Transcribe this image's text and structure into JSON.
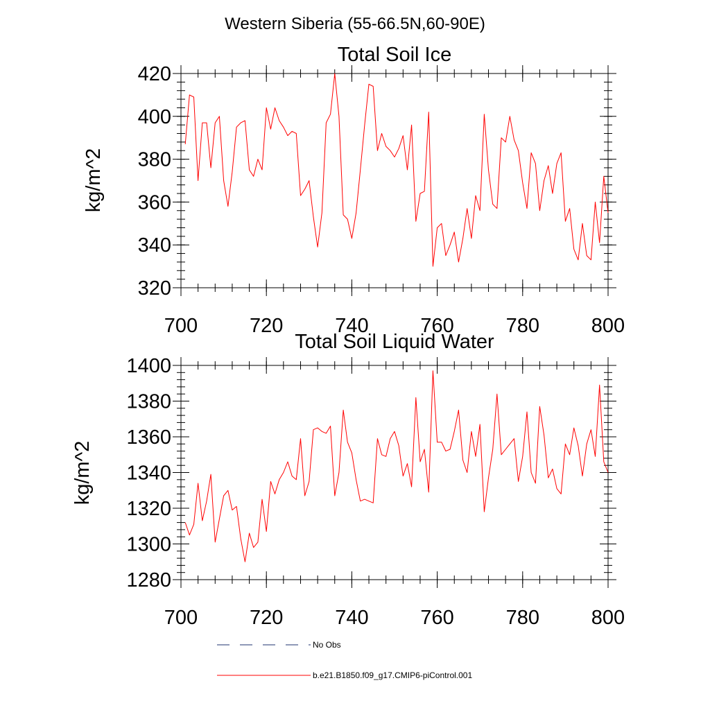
{
  "figure": {
    "suptitle": "Western Siberia (55-66.5N,60-90E)"
  },
  "chart_data": [
    {
      "type": "line",
      "title": "Total Soil Ice",
      "xlabel": "",
      "ylabel": "kg/m^2",
      "xlim": [
        700,
        800
      ],
      "ylim": [
        320,
        420
      ],
      "xticks": [
        700,
        720,
        740,
        760,
        780,
        800
      ],
      "yticks": [
        320,
        340,
        360,
        380,
        400,
        420
      ],
      "grid": false,
      "series": [
        {
          "name": "b.e21.B1850.f09_g17.CMIP6-piControl.001",
          "color": "#ff0000",
          "x": [
            701,
            702,
            703,
            704,
            705,
            706,
            707,
            708,
            709,
            710,
            711,
            712,
            713,
            714,
            715,
            716,
            717,
            718,
            719,
            720,
            721,
            722,
            723,
            724,
            725,
            726,
            727,
            728,
            729,
            730,
            731,
            732,
            733,
            734,
            735,
            736,
            737,
            738,
            739,
            740,
            741,
            742,
            743,
            744,
            745,
            746,
            747,
            748,
            749,
            750,
            751,
            752,
            753,
            754,
            755,
            756,
            757,
            758,
            759,
            760,
            761,
            762,
            763,
            764,
            765,
            766,
            767,
            768,
            769,
            770,
            771,
            772,
            773,
            774,
            775,
            776,
            777,
            778,
            779,
            780,
            781,
            782,
            783,
            784,
            785,
            786,
            787,
            788,
            789,
            790,
            791,
            792,
            793,
            794,
            795,
            796,
            797,
            798,
            799,
            800
          ],
          "y": [
            387,
            410,
            409,
            370,
            397,
            397,
            376,
            397,
            400,
            370,
            358,
            374,
            395,
            397,
            398,
            375,
            372,
            380,
            375,
            404,
            394,
            404,
            398,
            395,
            391,
            393,
            392,
            363,
            366,
            370,
            353,
            339,
            355,
            397,
            401,
            420,
            400,
            354,
            352,
            343,
            355,
            375,
            396,
            415,
            414,
            384,
            392,
            386,
            384,
            381,
            385,
            391,
            375,
            396,
            351,
            364,
            365,
            402,
            330,
            348,
            350,
            335,
            340,
            346,
            332,
            343,
            357,
            343,
            363,
            356,
            401,
            375,
            359,
            357,
            390,
            388,
            400,
            389,
            384,
            369,
            357,
            383,
            378,
            356,
            370,
            377,
            364,
            378,
            383,
            351,
            357,
            338,
            333,
            350,
            335,
            333,
            360,
            341,
            372,
            355
          ]
        }
      ]
    },
    {
      "type": "line",
      "title": "Total Soil Liquid Water",
      "xlabel": "",
      "ylabel": "kg/m^2",
      "xlim": [
        700,
        800
      ],
      "ylim": [
        1280,
        1400
      ],
      "xticks": [
        700,
        720,
        740,
        760,
        780,
        800
      ],
      "yticks": [
        1280,
        1300,
        1320,
        1340,
        1360,
        1380,
        1400
      ],
      "grid": false,
      "series": [
        {
          "name": "b.e21.B1850.f09_g17.CMIP6-piControl.001",
          "color": "#ff0000",
          "x": [
            701,
            702,
            703,
            704,
            705,
            706,
            707,
            708,
            709,
            710,
            711,
            712,
            713,
            714,
            715,
            716,
            717,
            718,
            719,
            720,
            721,
            722,
            723,
            724,
            725,
            726,
            727,
            728,
            729,
            730,
            731,
            732,
            733,
            734,
            735,
            736,
            737,
            738,
            739,
            740,
            741,
            742,
            743,
            744,
            745,
            746,
            747,
            748,
            749,
            750,
            751,
            752,
            753,
            754,
            755,
            756,
            757,
            758,
            759,
            760,
            761,
            762,
            763,
            764,
            765,
            766,
            767,
            768,
            769,
            770,
            771,
            772,
            773,
            774,
            775,
            776,
            777,
            778,
            779,
            780,
            781,
            782,
            783,
            784,
            785,
            786,
            787,
            788,
            789,
            790,
            791,
            792,
            793,
            794,
            795,
            796,
            797,
            798,
            799,
            800
          ],
          "y": [
            1312,
            1305,
            1311,
            1334,
            1313,
            1324,
            1339,
            1301,
            1314,
            1327,
            1330,
            1319,
            1321,
            1303,
            1290,
            1306,
            1298,
            1301,
            1325,
            1307,
            1335,
            1328,
            1336,
            1340,
            1346,
            1338,
            1336,
            1359,
            1327,
            1335,
            1364,
            1365,
            1363,
            1362,
            1366,
            1327,
            1340,
            1375,
            1357,
            1351,
            1336,
            1324,
            1325,
            1324,
            1323,
            1359,
            1350,
            1349,
            1359,
            1363,
            1355,
            1338,
            1345,
            1332,
            1382,
            1346,
            1353,
            1329,
            1397,
            1357,
            1357,
            1352,
            1353,
            1363,
            1375,
            1347,
            1340,
            1363,
            1349,
            1367,
            1318,
            1337,
            1353,
            1384,
            1350,
            1353,
            1356,
            1359,
            1335,
            1349,
            1374,
            1340,
            1334,
            1377,
            1361,
            1337,
            1342,
            1331,
            1328,
            1356,
            1350,
            1365,
            1355,
            1338,
            1356,
            1364,
            1349,
            1389,
            1346,
            1340
          ]
        }
      ]
    }
  ],
  "legend": {
    "entries": [
      {
        "label": "No Obs",
        "color": "#4a5a8c",
        "dash": "dashed"
      },
      {
        "label": "b.e21.B1850.f09_g17.CMIP6-piControl.001",
        "color": "#ff0000",
        "dash": "solid"
      }
    ]
  }
}
